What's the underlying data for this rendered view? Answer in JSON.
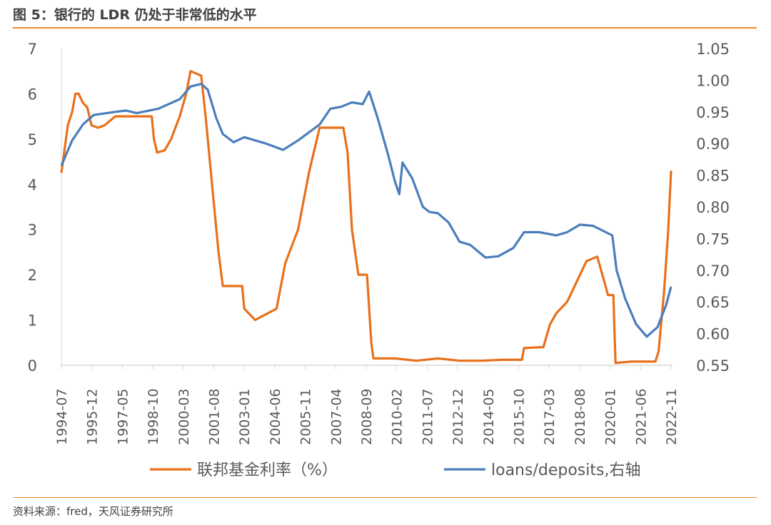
{
  "title": "图 5：银行的 LDR 仍处于非常低的水平",
  "source": "资料来源：fred，天风证券研究所",
  "chart_data": {
    "type": "line",
    "x_ticks": [
      "1994-07",
      "1995-12",
      "1997-05",
      "1998-10",
      "2000-03",
      "2001-08",
      "2003-01",
      "2004-06",
      "2005-11",
      "2007-04",
      "2008-09",
      "2010-02",
      "2011-07",
      "2012-12",
      "2014-05",
      "2015-10",
      "2017-03",
      "2018-08",
      "2020-01",
      "2021-06",
      "2022-11"
    ],
    "xlim": [
      1994.5,
      2022.83
    ],
    "y_left": {
      "ylim": [
        0,
        7
      ],
      "ticks": [
        "0",
        "1",
        "2",
        "3",
        "4",
        "5",
        "6",
        "7"
      ]
    },
    "y_right": {
      "ylim": [
        0.55,
        1.05
      ],
      "ticks": [
        "0.55",
        "0.60",
        "0.65",
        "0.70",
        "0.75",
        "0.80",
        "0.85",
        "0.90",
        "0.95",
        "1.00",
        "1.05"
      ]
    },
    "series": [
      {
        "name": "联邦基金利率（%）",
        "axis": "left",
        "color": "#e8701a",
        "x": [
          1994.5,
          1994.8,
          1995.0,
          1995.15,
          1995.3,
          1995.5,
          1995.7,
          1995.9,
          1996.2,
          1996.5,
          1997.0,
          1997.3,
          1998.0,
          1998.7,
          1998.8,
          1998.95,
          1999.3,
          1999.6,
          2000.0,
          2000.3,
          2000.5,
          2001.0,
          2001.2,
          2001.5,
          2001.8,
          2002.0,
          2002.9,
          2003.0,
          2003.5,
          2004.5,
          2004.9,
          2005.5,
          2006.0,
          2006.5,
          2007.6,
          2007.8,
          2008.0,
          2008.3,
          2008.7,
          2008.9,
          2009.0,
          2010.0,
          2011.0,
          2012.0,
          2013.0,
          2014.0,
          2015.0,
          2015.9,
          2016.0,
          2016.9,
          2017.2,
          2017.5,
          2018.0,
          2018.5,
          2018.9,
          2019.4,
          2019.7,
          2019.9,
          2020.15,
          2020.25,
          2021.0,
          2022.1,
          2022.25,
          2022.5,
          2022.7,
          2022.83
        ],
        "y": [
          4.25,
          5.3,
          5.6,
          6.0,
          6.0,
          5.8,
          5.7,
          5.3,
          5.25,
          5.3,
          5.5,
          5.5,
          5.5,
          5.5,
          5.0,
          4.7,
          4.75,
          5.0,
          5.5,
          6.0,
          6.5,
          6.4,
          5.5,
          4.0,
          2.5,
          1.75,
          1.75,
          1.25,
          1.0,
          1.25,
          2.25,
          3.0,
          4.25,
          5.25,
          5.25,
          4.7,
          3.0,
          2.0,
          2.0,
          0.5,
          0.15,
          0.15,
          0.1,
          0.15,
          0.1,
          0.1,
          0.12,
          0.12,
          0.38,
          0.4,
          0.9,
          1.15,
          1.4,
          1.9,
          2.3,
          2.4,
          1.9,
          1.55,
          1.55,
          0.05,
          0.08,
          0.08,
          0.3,
          1.6,
          3.0,
          4.3
        ]
      },
      {
        "name": "loans/deposits,右轴",
        "axis": "right",
        "color": "#4a7ebb",
        "x": [
          1994.5,
          1995.0,
          1995.5,
          1996.0,
          1997.0,
          1997.5,
          1998.0,
          1999.0,
          2000.0,
          2000.5,
          2001.0,
          2001.3,
          2001.7,
          2002.0,
          2002.5,
          2003.0,
          2003.5,
          2004.0,
          2004.8,
          2005.5,
          2006.5,
          2007.0,
          2007.5,
          2008.0,
          2008.5,
          2008.8,
          2009.2,
          2009.7,
          2010.0,
          2010.2,
          2010.35,
          2010.8,
          2011.3,
          2011.6,
          2012.0,
          2012.5,
          2013.0,
          2013.5,
          2014.2,
          2014.8,
          2015.5,
          2016.0,
          2016.7,
          2017.5,
          2018.0,
          2018.6,
          2019.2,
          2019.8,
          2020.1,
          2020.3,
          2020.7,
          2021.2,
          2021.7,
          2022.2,
          2022.6,
          2022.83
        ],
        "y": [
          0.865,
          0.905,
          0.93,
          0.945,
          0.95,
          0.952,
          0.948,
          0.955,
          0.97,
          0.99,
          0.994,
          0.985,
          0.94,
          0.915,
          0.902,
          0.91,
          0.905,
          0.9,
          0.89,
          0.905,
          0.93,
          0.955,
          0.958,
          0.965,
          0.962,
          0.982,
          0.94,
          0.88,
          0.84,
          0.82,
          0.87,
          0.845,
          0.8,
          0.792,
          0.79,
          0.775,
          0.745,
          0.74,
          0.72,
          0.722,
          0.735,
          0.76,
          0.76,
          0.755,
          0.76,
          0.772,
          0.77,
          0.76,
          0.755,
          0.7,
          0.655,
          0.615,
          0.595,
          0.61,
          0.645,
          0.674
        ]
      }
    ],
    "legend": {
      "placement": "bottom"
    }
  }
}
